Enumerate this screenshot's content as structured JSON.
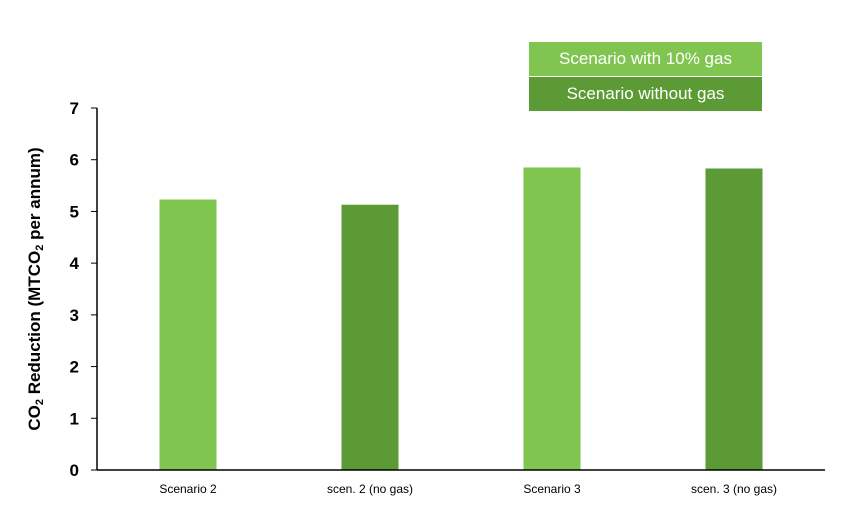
{
  "chart_data": {
    "type": "bar",
    "categories": [
      "Scenario 2",
      "scen. 2 (no gas)",
      "Scenario 3",
      "scen. 3 (no gas)"
    ],
    "values": [
      5.23,
      5.13,
      5.85,
      5.83
    ],
    "bar_colors": [
      "#7fc54f",
      "#5b9a34",
      "#7fc54f",
      "#5b9a34"
    ],
    "ylabel": {
      "prefix": "CO",
      "sub1": "2",
      "mid": " Reduction (MTCO",
      "sub2": "2",
      "suffix": " per annum)"
    },
    "ylim": [
      0,
      7
    ],
    "yticks": [
      0,
      1,
      2,
      3,
      4,
      5,
      6,
      7
    ],
    "legend": {
      "position": "top-right",
      "entries": [
        {
          "label": "Scenario with 10% gas",
          "color": "#7fc54f"
        },
        {
          "label": "Scenario without gas",
          "color": "#5b9a34"
        }
      ]
    },
    "grid": false
  }
}
